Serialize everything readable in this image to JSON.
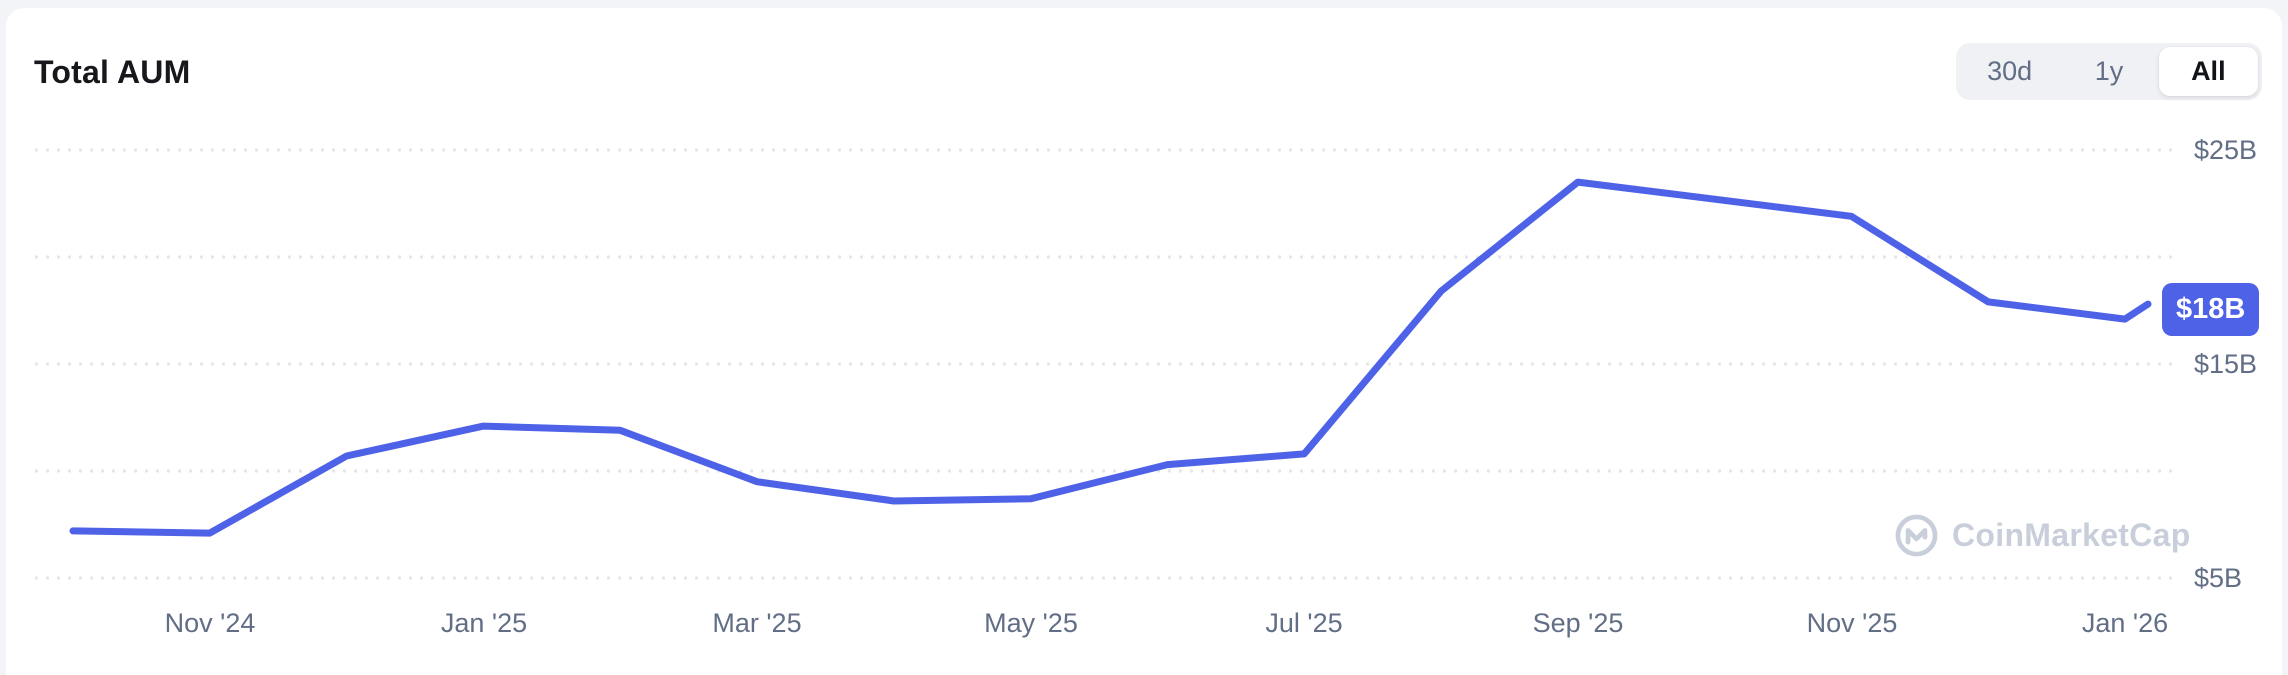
{
  "header": {
    "title": "Total AUM",
    "timeframes": [
      {
        "label": "30d",
        "active": false
      },
      {
        "label": "1y",
        "active": false
      },
      {
        "label": "All",
        "active": true
      }
    ]
  },
  "badge": {
    "label": "$18B"
  },
  "watermark": {
    "label": "CoinMarketCap"
  },
  "colors": {
    "line": "#4e62e8",
    "badge_bg": "#4d62e6",
    "grid": "#e4e6ea",
    "axis_text": "#616e85"
  },
  "chart_data": {
    "type": "line",
    "title": "Total AUM",
    "unit": "USD billions",
    "legend_position": "none",
    "grid": "horizontal dotted",
    "x": [
      "Oct '24",
      "Nov '24",
      "Dec '24",
      "Jan '25",
      "Feb '25",
      "Mar '25",
      "Apr '25",
      "May '25",
      "Jun '25",
      "Jul '25",
      "Aug '25",
      "Sep '25",
      "Oct '25",
      "Nov '25",
      "Dec '25",
      "Jan '26"
    ],
    "values": [
      7.2,
      7.1,
      10.7,
      12.1,
      11.9,
      9.5,
      8.6,
      8.7,
      10.3,
      10.8,
      18.4,
      23.5,
      22.7,
      21.9,
      17.9,
      17.1
    ],
    "end_value": 17.8,
    "current_value_label": "$18B",
    "x_tick_labels": [
      "Nov '24",
      "Jan '25",
      "Mar '25",
      "May '25",
      "Jul '25",
      "Sep '25",
      "Nov '25",
      "Jan '26"
    ],
    "y_ticks": [
      {
        "label": "$25B",
        "value": 25
      },
      {
        "label": "$15B",
        "value": 15
      },
      {
        "label": "$5B",
        "value": 5
      }
    ],
    "y_gridline_values": [
      25,
      20,
      15,
      10,
      5
    ],
    "ylim": [
      5,
      25
    ]
  }
}
